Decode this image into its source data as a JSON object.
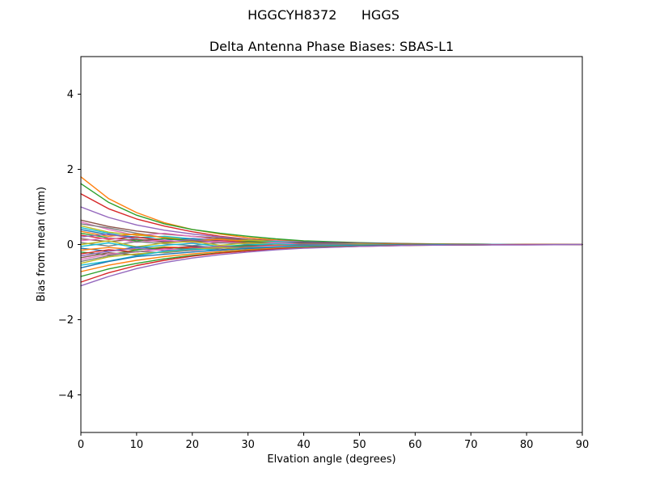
{
  "chart_data": {
    "type": "line",
    "suptitle": "HGGCYH8372      HGGS",
    "title": "Delta Antenna Phase Biases: SBAS-L1",
    "xlabel": "Elvation angle (degrees)",
    "ylabel": "Bias from mean (mm)",
    "xlim": [
      0,
      90
    ],
    "ylim": [
      -5,
      5
    ],
    "xticks": [
      0,
      10,
      20,
      30,
      40,
      50,
      60,
      70,
      80,
      90
    ],
    "xtick_labels": [
      "0",
      "10",
      "20",
      "30",
      "40",
      "50",
      "60",
      "70",
      "80",
      "90"
    ],
    "yticks": [
      -4,
      -2,
      0,
      2,
      4
    ],
    "ytick_labels": [
      "−4",
      "−2",
      "0",
      "2",
      "4"
    ],
    "grid": false,
    "legend": "none",
    "line_width": 1.4,
    "x": [
      0,
      5,
      10,
      15,
      20,
      25,
      30,
      35,
      40,
      50,
      60,
      70,
      80,
      90
    ],
    "series": [
      {
        "color": "#ff7f0e",
        "values": [
          1.8,
          1.22,
          0.85,
          0.58,
          0.4,
          0.28,
          0.18,
          0.12,
          0.08,
          0.04,
          0.02,
          0.01,
          0.0,
          0.0
        ]
      },
      {
        "color": "#2ca02c",
        "values": [
          1.62,
          1.12,
          0.78,
          0.55,
          0.4,
          0.3,
          0.22,
          0.15,
          0.1,
          0.05,
          0.02,
          0.01,
          0.0,
          0.0
        ]
      },
      {
        "color": "#d62728",
        "values": [
          1.35,
          0.95,
          0.68,
          0.49,
          0.34,
          0.22,
          0.14,
          0.09,
          0.06,
          0.03,
          0.01,
          0.0,
          0.0,
          0.0
        ]
      },
      {
        "color": "#9467bd",
        "values": [
          1.0,
          0.72,
          0.52,
          0.38,
          0.28,
          0.2,
          0.14,
          0.1,
          0.07,
          0.03,
          0.01,
          0.0,
          0.0,
          0.0
        ]
      },
      {
        "color": "#8c564b",
        "values": [
          0.65,
          0.48,
          0.36,
          0.28,
          0.22,
          0.17,
          0.13,
          0.1,
          0.07,
          0.04,
          0.02,
          0.01,
          0.0,
          0.0
        ]
      },
      {
        "color": "#e377c2",
        "values": [
          0.6,
          0.4,
          0.24,
          0.3,
          0.22,
          0.12,
          0.08,
          0.1,
          0.06,
          0.03,
          0.01,
          0.0,
          0.0,
          0.0
        ]
      },
      {
        "color": "#7f7f7f",
        "values": [
          0.55,
          0.44,
          0.3,
          0.18,
          0.12,
          0.15,
          0.1,
          0.06,
          0.04,
          0.02,
          0.01,
          0.0,
          0.0,
          0.0
        ]
      },
      {
        "color": "#bcbd22",
        "values": [
          0.5,
          0.33,
          0.25,
          0.2,
          0.12,
          0.08,
          0.12,
          0.08,
          0.05,
          0.02,
          0.01,
          0.01,
          0.0,
          0.0
        ]
      },
      {
        "color": "#17becf",
        "values": [
          0.45,
          0.3,
          0.18,
          0.22,
          0.15,
          0.1,
          0.06,
          0.08,
          0.05,
          0.02,
          0.01,
          0.0,
          0.0,
          0.0
        ]
      },
      {
        "color": "#1f77b4",
        "values": [
          0.4,
          0.26,
          0.2,
          0.12,
          0.16,
          0.1,
          0.06,
          0.04,
          0.06,
          0.03,
          0.01,
          0.0,
          0.0,
          0.0
        ]
      },
      {
        "color": "#ff7f0e",
        "values": [
          0.35,
          0.22,
          0.28,
          0.18,
          0.1,
          0.14,
          0.08,
          0.05,
          0.03,
          0.02,
          0.01,
          0.0,
          0.0,
          0.0
        ]
      },
      {
        "color": "#2ca02c",
        "values": [
          0.3,
          0.18,
          0.1,
          0.16,
          0.1,
          0.05,
          0.08,
          0.04,
          0.02,
          0.01,
          0.01,
          0.0,
          0.0,
          0.0
        ]
      },
      {
        "color": "#d62728",
        "values": [
          0.25,
          0.14,
          0.2,
          0.1,
          0.06,
          0.1,
          0.05,
          0.03,
          0.04,
          0.02,
          0.01,
          0.0,
          0.0,
          0.0
        ]
      },
      {
        "color": "#9467bd",
        "values": [
          0.2,
          0.28,
          0.14,
          0.08,
          0.12,
          0.06,
          0.03,
          0.05,
          0.02,
          0.01,
          0.0,
          0.0,
          0.0,
          0.0
        ]
      },
      {
        "color": "#8c564b",
        "values": [
          0.15,
          0.08,
          0.14,
          0.06,
          0.1,
          0.04,
          0.06,
          0.02,
          0.03,
          0.01,
          0.0,
          0.0,
          0.0,
          0.0
        ]
      },
      {
        "color": "#e377c2",
        "values": [
          0.1,
          0.18,
          0.06,
          0.12,
          0.04,
          0.08,
          0.02,
          0.04,
          0.01,
          0.01,
          0.0,
          0.0,
          0.0,
          0.0
        ]
      },
      {
        "color": "#7f7f7f",
        "values": [
          0.05,
          -0.04,
          0.08,
          0.02,
          -0.03,
          0.05,
          0.01,
          -0.02,
          0.02,
          0.01,
          0.0,
          0.0,
          0.0,
          0.0
        ]
      },
      {
        "color": "#bcbd22",
        "values": [
          0.0,
          0.1,
          -0.06,
          0.04,
          0.08,
          -0.02,
          0.04,
          0.01,
          -0.02,
          0.01,
          0.0,
          0.0,
          0.0,
          0.0
        ]
      },
      {
        "color": "#17becf",
        "values": [
          -0.05,
          0.04,
          -0.08,
          -0.02,
          0.03,
          -0.05,
          -0.01,
          0.02,
          -0.02,
          -0.01,
          0.0,
          0.0,
          0.0,
          0.0
        ]
      },
      {
        "color": "#1f77b4",
        "values": [
          -0.1,
          -0.18,
          -0.06,
          -0.12,
          -0.04,
          -0.08,
          -0.02,
          -0.04,
          -0.01,
          -0.01,
          0.0,
          0.0,
          0.0,
          0.0
        ]
      },
      {
        "color": "#ff7f0e",
        "values": [
          -0.15,
          -0.08,
          -0.14,
          -0.06,
          -0.1,
          -0.04,
          -0.06,
          -0.02,
          -0.03,
          -0.01,
          0.0,
          0.0,
          0.0,
          0.0
        ]
      },
      {
        "color": "#2ca02c",
        "values": [
          -0.2,
          -0.28,
          -0.14,
          -0.08,
          -0.12,
          -0.06,
          -0.03,
          -0.05,
          -0.02,
          -0.01,
          0.0,
          0.0,
          0.0,
          0.0
        ]
      },
      {
        "color": "#d62728",
        "values": [
          -0.25,
          -0.14,
          -0.2,
          -0.1,
          -0.06,
          -0.1,
          -0.05,
          -0.03,
          -0.04,
          -0.02,
          -0.01,
          0.0,
          0.0,
          0.0
        ]
      },
      {
        "color": "#9467bd",
        "values": [
          -0.3,
          -0.18,
          -0.1,
          -0.16,
          -0.1,
          -0.05,
          -0.08,
          -0.04,
          -0.02,
          -0.01,
          -0.01,
          0.0,
          0.0,
          0.0
        ]
      },
      {
        "color": "#8c564b",
        "values": [
          -0.35,
          -0.22,
          -0.28,
          -0.18,
          -0.1,
          -0.14,
          -0.08,
          -0.05,
          -0.03,
          -0.02,
          -0.01,
          0.0,
          0.0,
          0.0
        ]
      },
      {
        "color": "#e377c2",
        "values": [
          -0.4,
          -0.26,
          -0.2,
          -0.12,
          -0.16,
          -0.1,
          -0.06,
          -0.04,
          -0.06,
          -0.03,
          -0.01,
          0.0,
          0.0,
          0.0
        ]
      },
      {
        "color": "#7f7f7f",
        "values": [
          -0.45,
          -0.3,
          -0.18,
          -0.22,
          -0.15,
          -0.1,
          -0.06,
          -0.08,
          -0.05,
          -0.02,
          -0.01,
          0.0,
          0.0,
          0.0
        ]
      },
      {
        "color": "#bcbd22",
        "values": [
          -0.5,
          -0.33,
          -0.25,
          -0.2,
          -0.12,
          -0.08,
          -0.12,
          -0.08,
          -0.05,
          -0.02,
          -0.01,
          -0.01,
          0.0,
          0.0
        ]
      },
      {
        "color": "#17becf",
        "values": [
          -0.55,
          -0.44,
          -0.3,
          -0.18,
          -0.12,
          -0.15,
          -0.1,
          -0.06,
          -0.04,
          -0.02,
          -0.01,
          0.0,
          0.0,
          0.0
        ]
      },
      {
        "color": "#1f77b4",
        "values": [
          -0.62,
          -0.45,
          -0.32,
          -0.26,
          -0.2,
          -0.15,
          -0.11,
          -0.08,
          -0.06,
          -0.03,
          -0.01,
          -0.01,
          0.0,
          0.0
        ]
      },
      {
        "color": "#ff7f0e",
        "values": [
          -0.72,
          -0.55,
          -0.42,
          -0.32,
          -0.25,
          -0.19,
          -0.14,
          -0.1,
          -0.07,
          -0.04,
          -0.02,
          -0.01,
          0.0,
          0.0
        ]
      },
      {
        "color": "#2ca02c",
        "values": [
          -0.85,
          -0.65,
          -0.5,
          -0.38,
          -0.29,
          -0.22,
          -0.16,
          -0.12,
          -0.08,
          -0.04,
          -0.02,
          -0.01,
          0.0,
          0.0
        ]
      },
      {
        "color": "#d62728",
        "values": [
          -1.0,
          -0.75,
          -0.56,
          -0.42,
          -0.31,
          -0.23,
          -0.17,
          -0.12,
          -0.09,
          -0.05,
          -0.02,
          -0.01,
          0.0,
          0.0
        ]
      },
      {
        "color": "#9467bd",
        "values": [
          -1.1,
          -0.85,
          -0.64,
          -0.48,
          -0.36,
          -0.27,
          -0.2,
          -0.14,
          -0.1,
          -0.05,
          -0.02,
          -0.01,
          -0.01,
          0.0
        ]
      }
    ]
  }
}
